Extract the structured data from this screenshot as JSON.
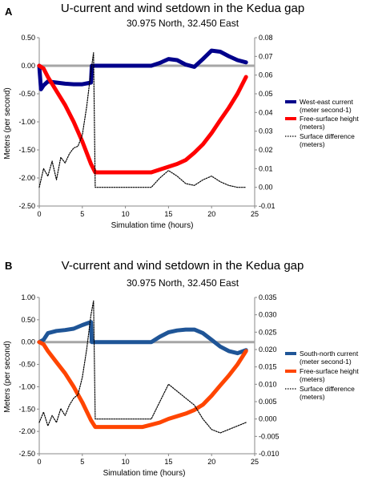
{
  "figure": {
    "panels": [
      {
        "label": "A",
        "title": "U-current and wind setdown in the Kedua gap",
        "subtitle": "30.975 North, 32.450 East",
        "xlabel": "Simulation time (hours)",
        "ylabel": "Meters (per second)",
        "legend": [
          "West-east current",
          "(meter second-1)",
          "Free-surface height",
          "(meters)",
          "Surface difference",
          "(meters)"
        ]
      },
      {
        "label": "B",
        "title": "V-current and wind setdown in the Kedua gap",
        "subtitle": "30.975 North, 32.450 East",
        "xlabel": "Simulation time (hours)",
        "ylabel": "Meters (per second)",
        "legend": [
          "South-north current",
          "(meter second-1)",
          "Free-surface height",
          "(meters)",
          "Surface difference",
          "(meters)"
        ]
      }
    ]
  },
  "chart_data": [
    {
      "type": "line",
      "title": "U-current and wind setdown in the Kedua gap",
      "subtitle": "30.975 North, 32.450 East",
      "xlabel": "Simulation time (hours)",
      "ylabel": "Meters (per second)",
      "xlim": [
        0,
        25
      ],
      "xticks": [
        "0",
        "5",
        "10",
        "15",
        "20",
        "25"
      ],
      "ylim": [
        -2.5,
        0.5
      ],
      "yticks": [
        "-2.50",
        "-2.00",
        "-1.50",
        "-1.00",
        "-0.50",
        "0.00",
        "0.50"
      ],
      "y2lim": [
        -0.01,
        0.08
      ],
      "y2ticks": [
        "-0.01",
        "0.00",
        "0.01",
        "0.02",
        "0.03",
        "0.04",
        "0.05",
        "0.06",
        "0.07",
        "0.08"
      ],
      "grid": false,
      "legend_position": "right",
      "series": [
        {
          "name": "West-east current (meter second-1)",
          "axis": "left",
          "color": "#00008b",
          "style": "solid-thick",
          "x": [
            0,
            0.2,
            0.5,
            1,
            2,
            3,
            4,
            5,
            6,
            6.1,
            7,
            10,
            12,
            13,
            14,
            15,
            16,
            17,
            18,
            19,
            20,
            21,
            22,
            23,
            24
          ],
          "y": [
            0.0,
            -0.42,
            -0.35,
            -0.28,
            -0.3,
            -0.32,
            -0.33,
            -0.33,
            -0.3,
            0.0,
            0.0,
            0.0,
            0.0,
            0.0,
            0.05,
            0.12,
            0.1,
            0.02,
            -0.02,
            0.12,
            0.27,
            0.25,
            0.17,
            0.1,
            0.06
          ]
        },
        {
          "name": "Free-surface height (meters)",
          "axis": "left",
          "color": "#ff0000",
          "style": "solid-thick",
          "x": [
            0,
            0.5,
            1,
            2,
            3,
            4,
            5,
            6,
            6.5,
            8,
            10,
            12,
            13,
            14,
            15,
            16,
            17,
            18,
            19,
            20,
            21,
            22,
            23,
            24
          ],
          "y": [
            0.0,
            -0.05,
            -0.2,
            -0.45,
            -0.7,
            -1.0,
            -1.35,
            -1.75,
            -1.9,
            -1.9,
            -1.9,
            -1.9,
            -1.9,
            -1.85,
            -1.8,
            -1.75,
            -1.68,
            -1.55,
            -1.4,
            -1.2,
            -0.97,
            -0.75,
            -0.5,
            -0.2
          ]
        },
        {
          "name": "Surface difference (meters)",
          "axis": "right",
          "color": "#000000",
          "style": "dotted",
          "x": [
            0,
            0.5,
            1,
            1.5,
            2,
            2.5,
            3,
            3.5,
            4,
            4.5,
            5,
            5.5,
            6,
            6.3,
            6.5,
            8,
            10,
            12,
            13,
            14,
            15,
            16,
            17,
            18,
            19,
            20,
            21,
            22,
            23,
            24
          ],
          "y": [
            0.0,
            0.01,
            0.006,
            0.014,
            0.004,
            0.016,
            0.013,
            0.018,
            0.021,
            0.022,
            0.028,
            0.043,
            0.062,
            0.072,
            0.0,
            0.0,
            0.0,
            0.0,
            0.0,
            0.005,
            0.009,
            0.006,
            0.002,
            0.001,
            0.004,
            0.006,
            0.003,
            0.001,
            0.0,
            0.0
          ]
        }
      ]
    },
    {
      "type": "line",
      "title": "V-current and wind setdown in the Kedua gap",
      "subtitle": "30.975 North, 32.450 East",
      "xlabel": "Simulation time (hours)",
      "ylabel": "Meters (per second)",
      "xlim": [
        0,
        25
      ],
      "xticks": [
        "0",
        "5",
        "10",
        "15",
        "20",
        "25"
      ],
      "ylim": [
        -2.5,
        1.0
      ],
      "yticks": [
        "-2.50",
        "-2.00",
        "-1.50",
        "-1.00",
        "-0.50",
        "0.00",
        "0.50",
        "1.00"
      ],
      "y2lim": [
        -0.01,
        0.035
      ],
      "y2ticks": [
        "-0.010",
        "-0.005",
        "0.000",
        "0.005",
        "0.010",
        "0.015",
        "0.020",
        "0.025",
        "0.030",
        "0.035"
      ],
      "grid": false,
      "legend_position": "right",
      "series": [
        {
          "name": "South-north current (meter second-1)",
          "axis": "left",
          "color": "#1f5597",
          "style": "solid-thick",
          "x": [
            0,
            0.5,
            1,
            2,
            3,
            4,
            5,
            6,
            6.1,
            8,
            10,
            12,
            13,
            14,
            15,
            16,
            17,
            18,
            19,
            20,
            21,
            22,
            23,
            24
          ],
          "y": [
            0.0,
            0.05,
            0.2,
            0.25,
            0.27,
            0.3,
            0.38,
            0.45,
            0.0,
            0.0,
            0.0,
            0.0,
            0.0,
            0.12,
            0.22,
            0.26,
            0.28,
            0.28,
            0.2,
            0.05,
            -0.1,
            -0.2,
            -0.25,
            -0.18
          ]
        },
        {
          "name": "Free-surface height (meters)",
          "axis": "left",
          "color": "#ff4500",
          "style": "solid-thick",
          "x": [
            0,
            0.5,
            1,
            2,
            3,
            4,
            5,
            6,
            6.5,
            8,
            10,
            12,
            13,
            14,
            15,
            16,
            17,
            18,
            19,
            20,
            21,
            22,
            23,
            24
          ],
          "y": [
            0.0,
            -0.05,
            -0.2,
            -0.45,
            -0.7,
            -1.0,
            -1.35,
            -1.75,
            -1.9,
            -1.9,
            -1.9,
            -1.9,
            -1.85,
            -1.8,
            -1.72,
            -1.66,
            -1.6,
            -1.52,
            -1.4,
            -1.2,
            -0.97,
            -0.75,
            -0.5,
            -0.2
          ]
        },
        {
          "name": "Surface difference (meters)",
          "axis": "right",
          "color": "#000000",
          "style": "dotted",
          "x": [
            0,
            0.5,
            1,
            1.5,
            2,
            2.5,
            3,
            3.5,
            4,
            4.5,
            5,
            5.5,
            6,
            6.3,
            6.5,
            8,
            10,
            12,
            13,
            14,
            15,
            16,
            17,
            18,
            19,
            20,
            21,
            22,
            23,
            24
          ],
          "y": [
            -0.001,
            0.002,
            -0.002,
            0.001,
            -0.001,
            0.003,
            0.001,
            0.004,
            0.006,
            0.007,
            0.012,
            0.02,
            0.03,
            0.034,
            0.0,
            0.0,
            0.0,
            0.0,
            0.0,
            0.005,
            0.01,
            0.008,
            0.006,
            0.004,
            0.0,
            -0.003,
            -0.004,
            -0.003,
            -0.002,
            -0.001
          ]
        }
      ]
    }
  ]
}
